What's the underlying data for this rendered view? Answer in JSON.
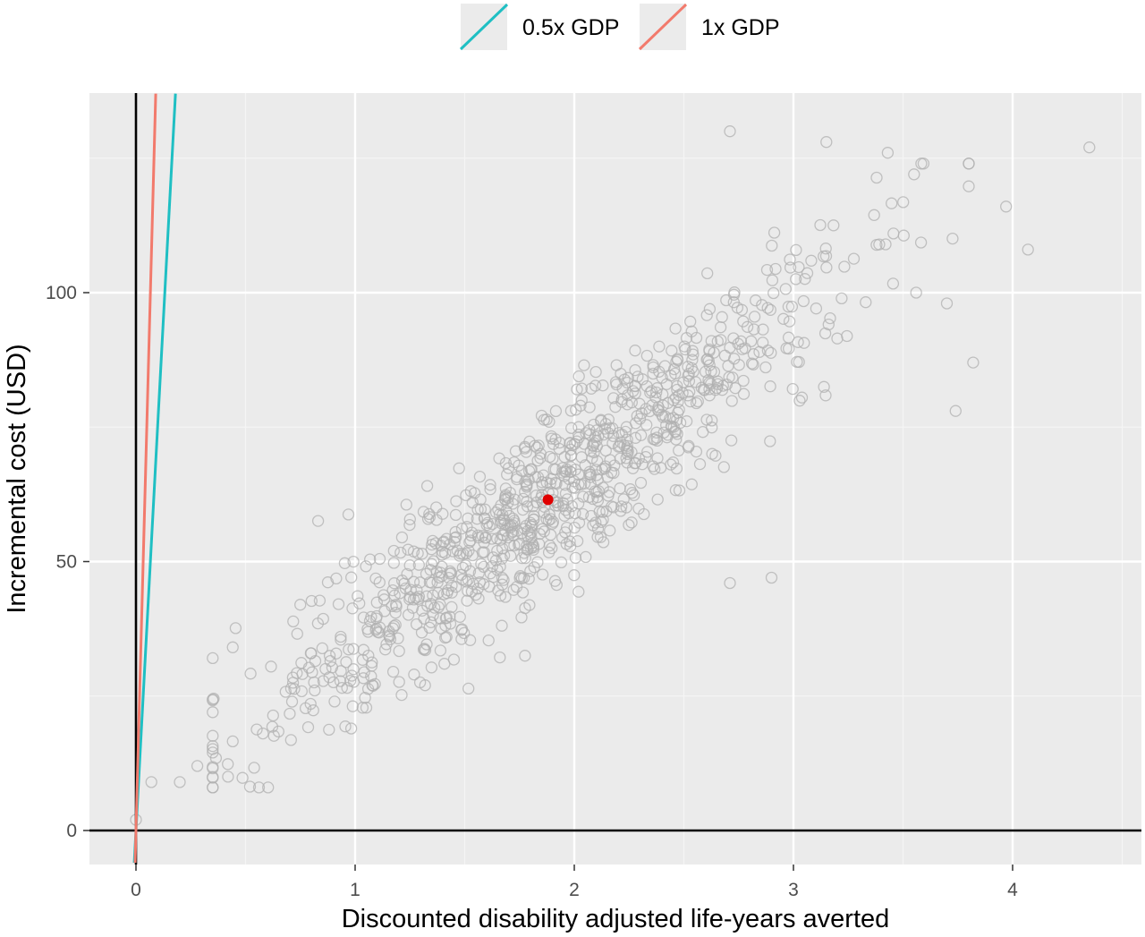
{
  "chart_data": {
    "type": "scatter",
    "xlabel": "Discounted disability adjusted life-years averted",
    "ylabel": "Incremental cost (USD)",
    "xlim": [
      -0.2,
      4.8
    ],
    "ylim": [
      -6,
      137
    ],
    "x_ticks": [
      0,
      1,
      2,
      3,
      4
    ],
    "y_ticks": [
      0,
      50,
      100
    ],
    "x_tick_labels": [
      "0",
      "1",
      "2",
      "3",
      "4"
    ],
    "y_tick_labels": [
      "0",
      "50",
      "100"
    ],
    "grid": true,
    "legend_position": "top",
    "legend": [
      {
        "label": "0.5x GDP",
        "color": "#1fbfc3"
      },
      {
        "label": "1x GDP",
        "color": "#f27a6c"
      }
    ],
    "threshold_lines": [
      {
        "name": "0.5x GDP",
        "slope": 760,
        "color": "#1fbfc3"
      },
      {
        "name": "1x GDP",
        "slope": 1520,
        "color": "#f27a6c"
      }
    ],
    "mean_point": {
      "x": 1.88,
      "y": 61.5,
      "color": "#e00000"
    },
    "simulation_points": {
      "n": 1000,
      "x_mean": 1.88,
      "x_sd": 0.68,
      "cost_intercept": 4,
      "cost_slope": 30.6,
      "cost_noise_sd": 8,
      "color": "#b0b0b0",
      "marker": "open-circle"
    },
    "points_extreme": [
      {
        "x": 0.0,
        "y": 2
      },
      {
        "x": 0.07,
        "y": 9
      },
      {
        "x": 0.2,
        "y": 9
      },
      {
        "x": 0.28,
        "y": 12
      },
      {
        "x": 0.42,
        "y": 10
      },
      {
        "x": 2.71,
        "y": 130
      },
      {
        "x": 3.15,
        "y": 128
      },
      {
        "x": 3.43,
        "y": 126
      },
      {
        "x": 3.55,
        "y": 122
      },
      {
        "x": 4.35,
        "y": 127
      },
      {
        "x": 3.97,
        "y": 116
      },
      {
        "x": 4.07,
        "y": 108
      },
      {
        "x": 3.82,
        "y": 87
      },
      {
        "x": 3.74,
        "y": 78
      },
      {
        "x": 2.71,
        "y": 46
      },
      {
        "x": 2.9,
        "y": 47
      },
      {
        "x": 3.56,
        "y": 100
      },
      {
        "x": 3.7,
        "y": 98
      }
    ]
  }
}
